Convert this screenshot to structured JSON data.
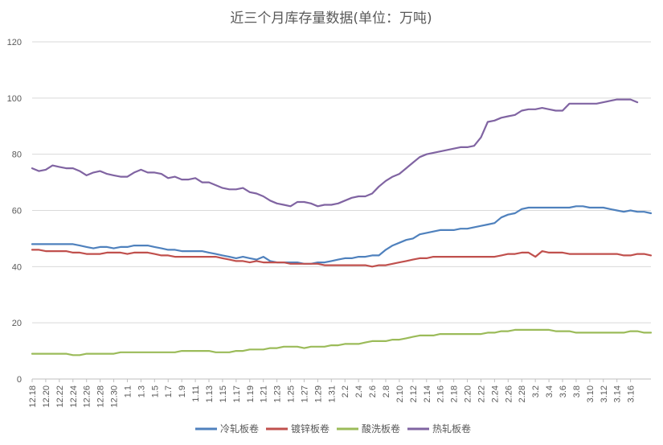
{
  "chart_data": {
    "type": "line",
    "title": "近三个月库存量数据(单位：万吨)",
    "xlabel": "",
    "ylabel": "",
    "ylim": [
      0,
      120
    ],
    "yticks": [
      0,
      20,
      40,
      60,
      80,
      100,
      120
    ],
    "grid": true,
    "legend_position": "bottom",
    "x_tick_labels": [
      "12.18",
      "12.20",
      "12.22",
      "12.24",
      "12.26",
      "12.28",
      "12.30",
      "1.1",
      "1.3",
      "1.5",
      "1.7",
      "1.9",
      "1.11",
      "1.13",
      "1.15",
      "1.17",
      "1.19",
      "1.21",
      "1.23",
      "1.25",
      "1.27",
      "1.29",
      "1.31",
      "2.2",
      "2.4",
      "2.6",
      "2.8",
      "2.10",
      "2.12",
      "2.14",
      "2.16",
      "2.18",
      "2.20",
      "2.22",
      "2.24",
      "2.26",
      "2.28",
      "3.2",
      "3.4",
      "3.6",
      "3.8",
      "3.10",
      "3.12",
      "3.14",
      "3.16"
    ],
    "series": [
      {
        "name": "冷轧板卷",
        "color": "#4f81bd",
        "values": [
          48,
          48,
          48,
          48,
          48,
          48,
          48,
          47.5,
          47,
          46.5,
          47,
          47,
          46.5,
          47,
          47,
          47.5,
          47.5,
          47.5,
          47,
          46.5,
          46,
          46,
          45.5,
          45.5,
          45.5,
          45.5,
          45,
          44.5,
          44,
          43.5,
          43,
          43.5,
          43,
          42.5,
          43.5,
          42,
          41.5,
          41.5,
          41.5,
          41.5,
          41,
          41,
          41.5,
          41.5,
          42,
          42.5,
          43,
          43,
          43.5,
          43.5,
          44,
          44,
          46,
          47.5,
          48.5,
          49.5,
          50,
          51.5,
          52,
          52.5,
          53,
          53,
          53,
          53.5,
          53.5,
          54,
          54.5,
          55,
          55.5,
          57.5,
          58.5,
          59,
          60.5,
          61,
          61,
          61,
          61,
          61,
          61,
          61,
          61.5,
          61.5,
          61,
          61,
          61,
          60.5,
          60,
          59.5,
          60,
          59.5,
          59.5,
          59
        ]
      },
      {
        "name": "镀锌板卷",
        "color": "#c0504d",
        "values": [
          46,
          46,
          45.5,
          45.5,
          45.5,
          45.5,
          45,
          45,
          44.5,
          44.5,
          44.5,
          45,
          45,
          45,
          44.5,
          45,
          45,
          45,
          44.5,
          44,
          44,
          43.5,
          43.5,
          43.5,
          43.5,
          43.5,
          43.5,
          43.5,
          43,
          42.5,
          42,
          42,
          41.5,
          42,
          41.5,
          41.5,
          41.5,
          41.5,
          41,
          41,
          41,
          41,
          41,
          40.5,
          40.5,
          40.5,
          40.5,
          40.5,
          40.5,
          40.5,
          40,
          40.5,
          40.5,
          41,
          41.5,
          42,
          42.5,
          43,
          43,
          43.5,
          43.5,
          43.5,
          43.5,
          43.5,
          43.5,
          43.5,
          43.5,
          43.5,
          43.5,
          44,
          44.5,
          44.5,
          45,
          45,
          43.5,
          45.5,
          45,
          45,
          45,
          44.5,
          44.5,
          44.5,
          44.5,
          44.5,
          44.5,
          44.5,
          44.5,
          44,
          44,
          44.5,
          44.5,
          44
        ]
      },
      {
        "name": "酸洗板卷",
        "color": "#9bbb59",
        "values": [
          9,
          9,
          9,
          9,
          9,
          9,
          8.5,
          8.5,
          9,
          9,
          9,
          9,
          9,
          9.5,
          9.5,
          9.5,
          9.5,
          9.5,
          9.5,
          9.5,
          9.5,
          9.5,
          10,
          10,
          10,
          10,
          10,
          9.5,
          9.5,
          9.5,
          10,
          10,
          10.5,
          10.5,
          10.5,
          11,
          11,
          11.5,
          11.5,
          11.5,
          11,
          11.5,
          11.5,
          11.5,
          12,
          12,
          12.5,
          12.5,
          12.5,
          13,
          13.5,
          13.5,
          13.5,
          14,
          14,
          14.5,
          15,
          15.5,
          15.5,
          15.5,
          16,
          16,
          16,
          16,
          16,
          16,
          16,
          16.5,
          16.5,
          17,
          17,
          17.5,
          17.5,
          17.5,
          17.5,
          17.5,
          17.5,
          17,
          17,
          17,
          16.5,
          16.5,
          16.5,
          16.5,
          16.5,
          16.5,
          16.5,
          16.5,
          17,
          17,
          16.5,
          16.5
        ]
      },
      {
        "name": "热轧板卷",
        "color": "#8064a2",
        "values": [
          75,
          74,
          74.5,
          76,
          75.5,
          75,
          75,
          74,
          72.5,
          73.5,
          74,
          73,
          72.5,
          72,
          72,
          73.5,
          74.5,
          73.5,
          73.5,
          73,
          71.5,
          72,
          71,
          71,
          71.5,
          70,
          70,
          69,
          68,
          67.5,
          67.5,
          68,
          66.5,
          66,
          65,
          63.5,
          62.5,
          62,
          61.5,
          63,
          63,
          62.5,
          61.5,
          62,
          62,
          62.5,
          63.5,
          64.5,
          65,
          65,
          66,
          68.5,
          70.5,
          72,
          73,
          75,
          77,
          79,
          80,
          80.5,
          81,
          81.5,
          82,
          82.5,
          82.5,
          83,
          86,
          91.5,
          92,
          93,
          93.5,
          94,
          95.5,
          96,
          96,
          96.5,
          96,
          95.5,
          95.5,
          98,
          98,
          98,
          98,
          98,
          98.5,
          99,
          99.5,
          99.5,
          99.5,
          98.5
        ]
      }
    ]
  }
}
